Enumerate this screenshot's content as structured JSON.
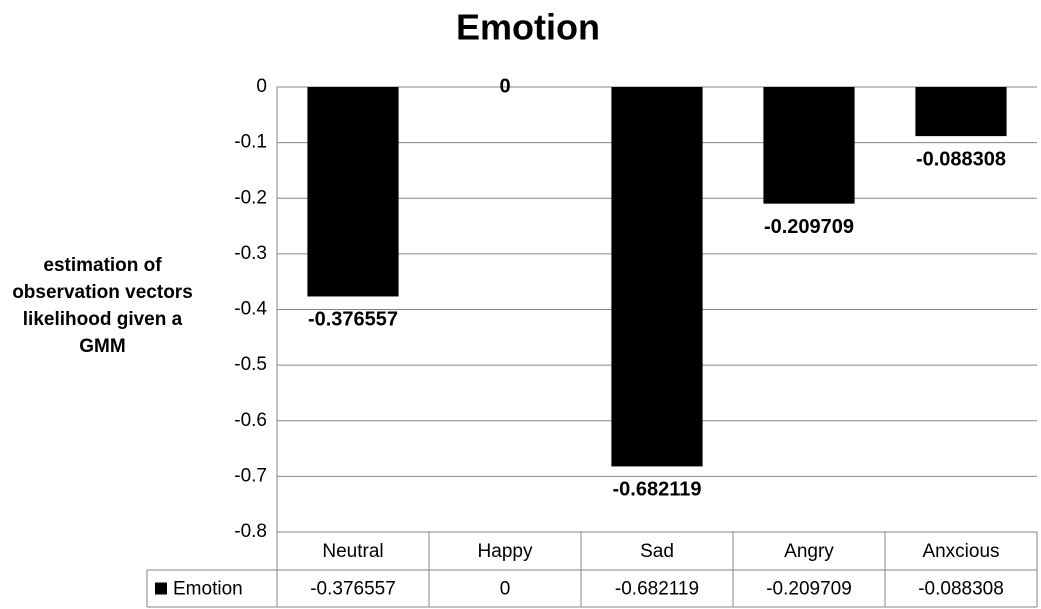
{
  "chart_data": {
    "type": "bar",
    "title": "Emotion",
    "y_label": "estimation of observation vectors likelihood given a GMM",
    "categories": [
      "Neutral",
      "Happy",
      "Sad",
      "Angry",
      "Anxcious"
    ],
    "series": [
      {
        "name": "Emotion",
        "color": "#000000",
        "values": [
          -0.376557,
          0,
          -0.682119,
          -0.209709,
          -0.088308
        ]
      }
    ],
    "ylim": [
      -0.8,
      0
    ],
    "yticks": [
      0,
      -0.1,
      -0.2,
      -0.3,
      -0.4,
      -0.5,
      -0.6,
      -0.7,
      -0.8
    ],
    "grid": true
  }
}
